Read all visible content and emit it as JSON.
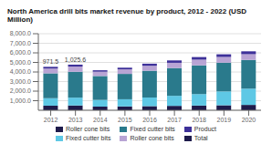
{
  "chart_data": {
    "type": "bar",
    "stacked": true,
    "title": "North America drill bits market revenue by product, 2012 - 2022 (USD Million)",
    "categories": [
      "2012",
      "2013",
      "2014",
      "2015",
      "2016",
      "2017",
      "2018",
      "2019",
      "2020"
    ],
    "series": [
      {
        "name": "Roller cone bits",
        "color": "#1e1b4b",
        "values": [
          480,
          500,
          380,
          400,
          430,
          460,
          490,
          520,
          560
        ]
      },
      {
        "name": "Fixed cutter bits",
        "color": "#5ec8e5",
        "values": [
          780,
          820,
          700,
          750,
          900,
          1050,
          1200,
          1450,
          1700
        ]
      },
      {
        "name": "Fixed cutter bits",
        "color": "#2a7a8c",
        "values": [
          2600,
          2700,
          2500,
          2650,
          2800,
          2900,
          3000,
          3000,
          3000
        ]
      },
      {
        "name": "Roller cone bits",
        "color": "#b8a4d4",
        "values": [
          500,
          550,
          450,
          480,
          520,
          550,
          600,
          600,
          600
        ]
      },
      {
        "name": "Product",
        "color": "#3d3099",
        "values": [
          180,
          200,
          150,
          170,
          220,
          250,
          270,
          280,
          300
        ]
      },
      {
        "name": "Total",
        "color": "#1e1b4b",
        "values": [
          null,
          null,
          null,
          null,
          null,
          null,
          null,
          null,
          null
        ]
      }
    ],
    "annotations": [
      {
        "x": "2012",
        "text": "971.5"
      },
      {
        "x": "2013",
        "text": "1,025.6"
      }
    ],
    "ylim": [
      0,
      8000
    ],
    "yticks": [
      {
        "value": 1000,
        "label": "1,000.0"
      },
      {
        "value": 2000,
        "label": "2,000.0"
      },
      {
        "value": 3000,
        "label": "3,000.0"
      },
      {
        "value": 4000,
        "label": "4,000.0"
      },
      {
        "value": 5000,
        "label": "5,000.0"
      },
      {
        "value": 6000,
        "label": "6,000.0"
      },
      {
        "value": 7000,
        "label": "7,000.0"
      },
      {
        "value": 8000,
        "label": "8,000.0"
      }
    ],
    "grid": true
  }
}
